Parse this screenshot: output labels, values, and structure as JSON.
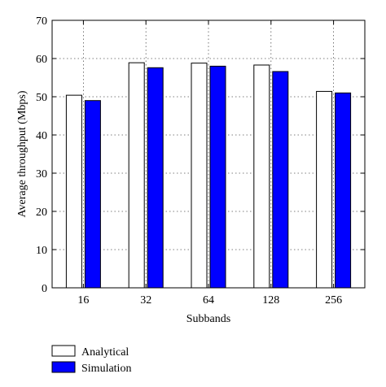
{
  "chart_data": {
    "type": "bar",
    "title": "",
    "xlabel": "Subbands",
    "ylabel": "Average throughput (Mbps)",
    "categories": [
      "16",
      "32",
      "64",
      "128",
      "256"
    ],
    "ylim": [
      0,
      70
    ],
    "yticks": [
      0,
      10,
      20,
      30,
      40,
      50,
      60,
      70
    ],
    "grid": true,
    "legend_position": "bottom-left",
    "series": [
      {
        "name": "Analytical",
        "values": [
          50.4,
          58.9,
          58.8,
          58.3,
          51.4
        ],
        "color": "#ffffff"
      },
      {
        "name": "Simulation",
        "values": [
          49.0,
          57.6,
          58.0,
          56.6,
          51.0
        ],
        "color": "#0000ff"
      }
    ]
  }
}
